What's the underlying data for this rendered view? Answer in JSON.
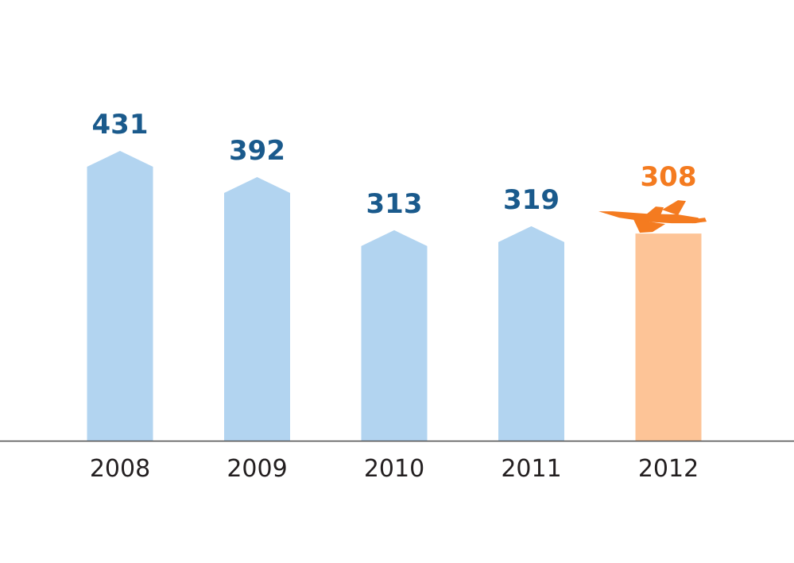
{
  "chart_data": {
    "type": "bar",
    "title": "",
    "xlabel": "",
    "ylabel": "",
    "categories": [
      "2008",
      "2009",
      "2010",
      "2011",
      "2012"
    ],
    "values": [
      431,
      392,
      313,
      319,
      308
    ],
    "value_labels": [
      "431",
      "392",
      "313",
      "319",
      "308"
    ],
    "ylim": [
      0,
      431
    ],
    "grid": false,
    "highlight_index": 4,
    "highlight_icon": "airplane-icon",
    "colors": {
      "bar": "#b2d4f0",
      "bar_highlight": "#fdc497",
      "label": "#1a5a8c",
      "label_highlight": "#f47b20",
      "icon": "#f47b20",
      "axis": "#4d4d4d",
      "category": "#231f20"
    }
  }
}
